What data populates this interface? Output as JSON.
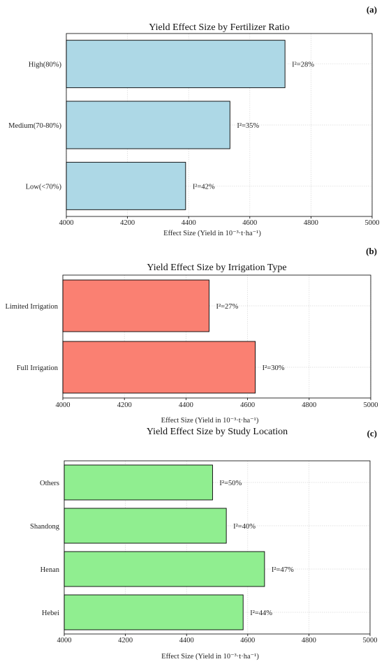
{
  "chart_data": [
    {
      "panel_label": "(a)",
      "type": "bar",
      "orientation": "horizontal",
      "title": "Yield Effect Size by Fertilizer Ratio",
      "xlabel": "Effect Size (Yield in 10⁻³·t·ha⁻¹)",
      "xlim": [
        4000,
        5000
      ],
      "xticks": [
        4000,
        4200,
        4400,
        4600,
        4800,
        5000
      ],
      "grid": true,
      "color": "#add8e6",
      "categories": [
        "High(80%)",
        "Medium(70-80%)",
        "Low(<70%)"
      ],
      "values": [
        4715,
        4535,
        4390
      ],
      "annotations": [
        "I²=28%",
        "I²=35%",
        "I²=42%"
      ]
    },
    {
      "panel_label": "(b)",
      "type": "bar",
      "orientation": "horizontal",
      "title": "Yield Effect Size by Irrigation Type",
      "xlabel": "Effect Size (Yield in 10⁻³·t·ha⁻¹)",
      "xlim": [
        4000,
        5000
      ],
      "xticks": [
        4000,
        4200,
        4400,
        4600,
        4800,
        5000
      ],
      "grid": true,
      "color": "#fa8072",
      "categories": [
        "Limited Irrigation",
        "Full Irrigation"
      ],
      "values": [
        4475,
        4625
      ],
      "annotations": [
        "I²=27%",
        "I²=30%"
      ]
    },
    {
      "panel_label": "(c)",
      "type": "bar",
      "orientation": "horizontal",
      "title": "Yield Effect Size by Study Location",
      "xlabel": "Effect Size (Yield in 10⁻³·t·ha⁻¹)",
      "xlim": [
        4000,
        5000
      ],
      "xticks": [
        4000,
        4200,
        4400,
        4600,
        4800,
        5000
      ],
      "grid": true,
      "color": "#90ee90",
      "categories": [
        "Others",
        "Shandong",
        "Henan",
        "Hebei"
      ],
      "values": [
        4485,
        4530,
        4655,
        4585
      ],
      "annotations": [
        "I²=50%",
        "I²=40%",
        "I²=47%",
        "I²=44%"
      ]
    }
  ]
}
